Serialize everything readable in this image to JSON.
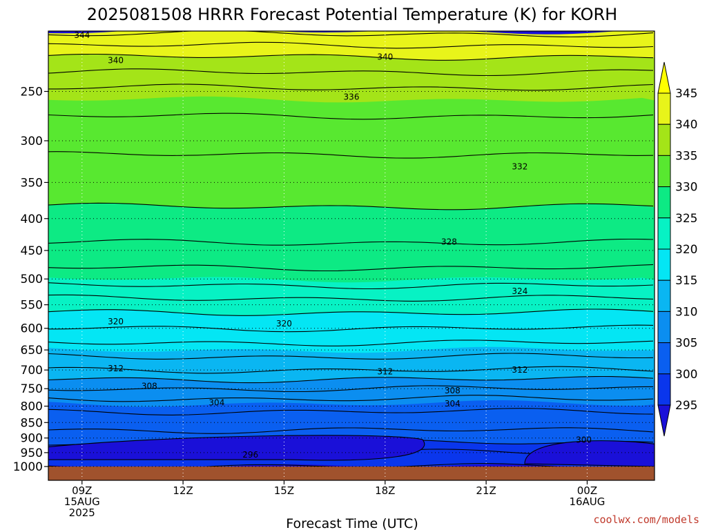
{
  "chart_data": {
    "type": "heatmap",
    "title": "2025081508 HRRR Forecast Potential Temperature (K) for KORH",
    "xlabel": "Forecast Time (UTC)",
    "ylabel": "",
    "x_ticks": [
      {
        "hour": 9,
        "lines": [
          "09Z",
          "15AUG",
          "2025"
        ]
      },
      {
        "hour": 12,
        "lines": [
          "12Z"
        ]
      },
      {
        "hour": 15,
        "lines": [
          "15Z"
        ]
      },
      {
        "hour": 18,
        "lines": [
          "18Z"
        ]
      },
      {
        "hour": 21,
        "lines": [
          "21Z"
        ]
      },
      {
        "hour": 24,
        "lines": [
          "00Z",
          "16AUG"
        ]
      }
    ],
    "x_range_hours": [
      8,
      26
    ],
    "y_axis": "pressure (hPa), log scale, inverted",
    "y_ticks": [
      250,
      300,
      350,
      400,
      450,
      500,
      550,
      600,
      650,
      700,
      750,
      800,
      850,
      900,
      950,
      1000
    ],
    "y_range_hpa": [
      200,
      1000
    ],
    "levels": [
      295,
      300,
      305,
      310,
      315,
      320,
      325,
      330,
      335,
      340,
      345
    ],
    "colors": [
      "#1a10d8",
      "#0a36ec",
      "#0a5ff0",
      "#0b8ef0",
      "#0ab6f2",
      "#04e6f4",
      "#07f2c4",
      "#0dea84",
      "#58e830",
      "#a4e418",
      "#e8f41a",
      "#ffff00"
    ],
    "colorbar_ticks": [
      "345",
      "340",
      "335",
      "330",
      "325",
      "320",
      "315",
      "310",
      "305",
      "300",
      "295"
    ],
    "contour_labels": [
      {
        "text": "344",
        "hour": 9.0,
        "p": 203
      },
      {
        "text": "340",
        "hour": 10.0,
        "p": 223
      },
      {
        "text": "340",
        "hour": 18.0,
        "p": 220
      },
      {
        "text": "336",
        "hour": 17.0,
        "p": 255
      },
      {
        "text": "332",
        "hour": 22.0,
        "p": 330
      },
      {
        "text": "328",
        "hour": 19.9,
        "p": 436
      },
      {
        "text": "324",
        "hour": 22.0,
        "p": 523
      },
      {
        "text": "320",
        "hour": 10.0,
        "p": 585
      },
      {
        "text": "320",
        "hour": 15.0,
        "p": 590
      },
      {
        "text": "312",
        "hour": 10.0,
        "p": 696
      },
      {
        "text": "312",
        "hour": 18.0,
        "p": 704
      },
      {
        "text": "312",
        "hour": 22.0,
        "p": 700
      },
      {
        "text": "308",
        "hour": 11.0,
        "p": 743
      },
      {
        "text": "308",
        "hour": 20.0,
        "p": 755
      },
      {
        "text": "304",
        "hour": 13.0,
        "p": 790
      },
      {
        "text": "304",
        "hour": 20.0,
        "p": 793
      },
      {
        "text": "300",
        "hour": 23.9,
        "p": 907
      },
      {
        "text": "296",
        "hour": 14.0,
        "p": 958
      }
    ],
    "ground_color": "#a0522d",
    "grid": true,
    "credit": "coolwx.com/models"
  }
}
